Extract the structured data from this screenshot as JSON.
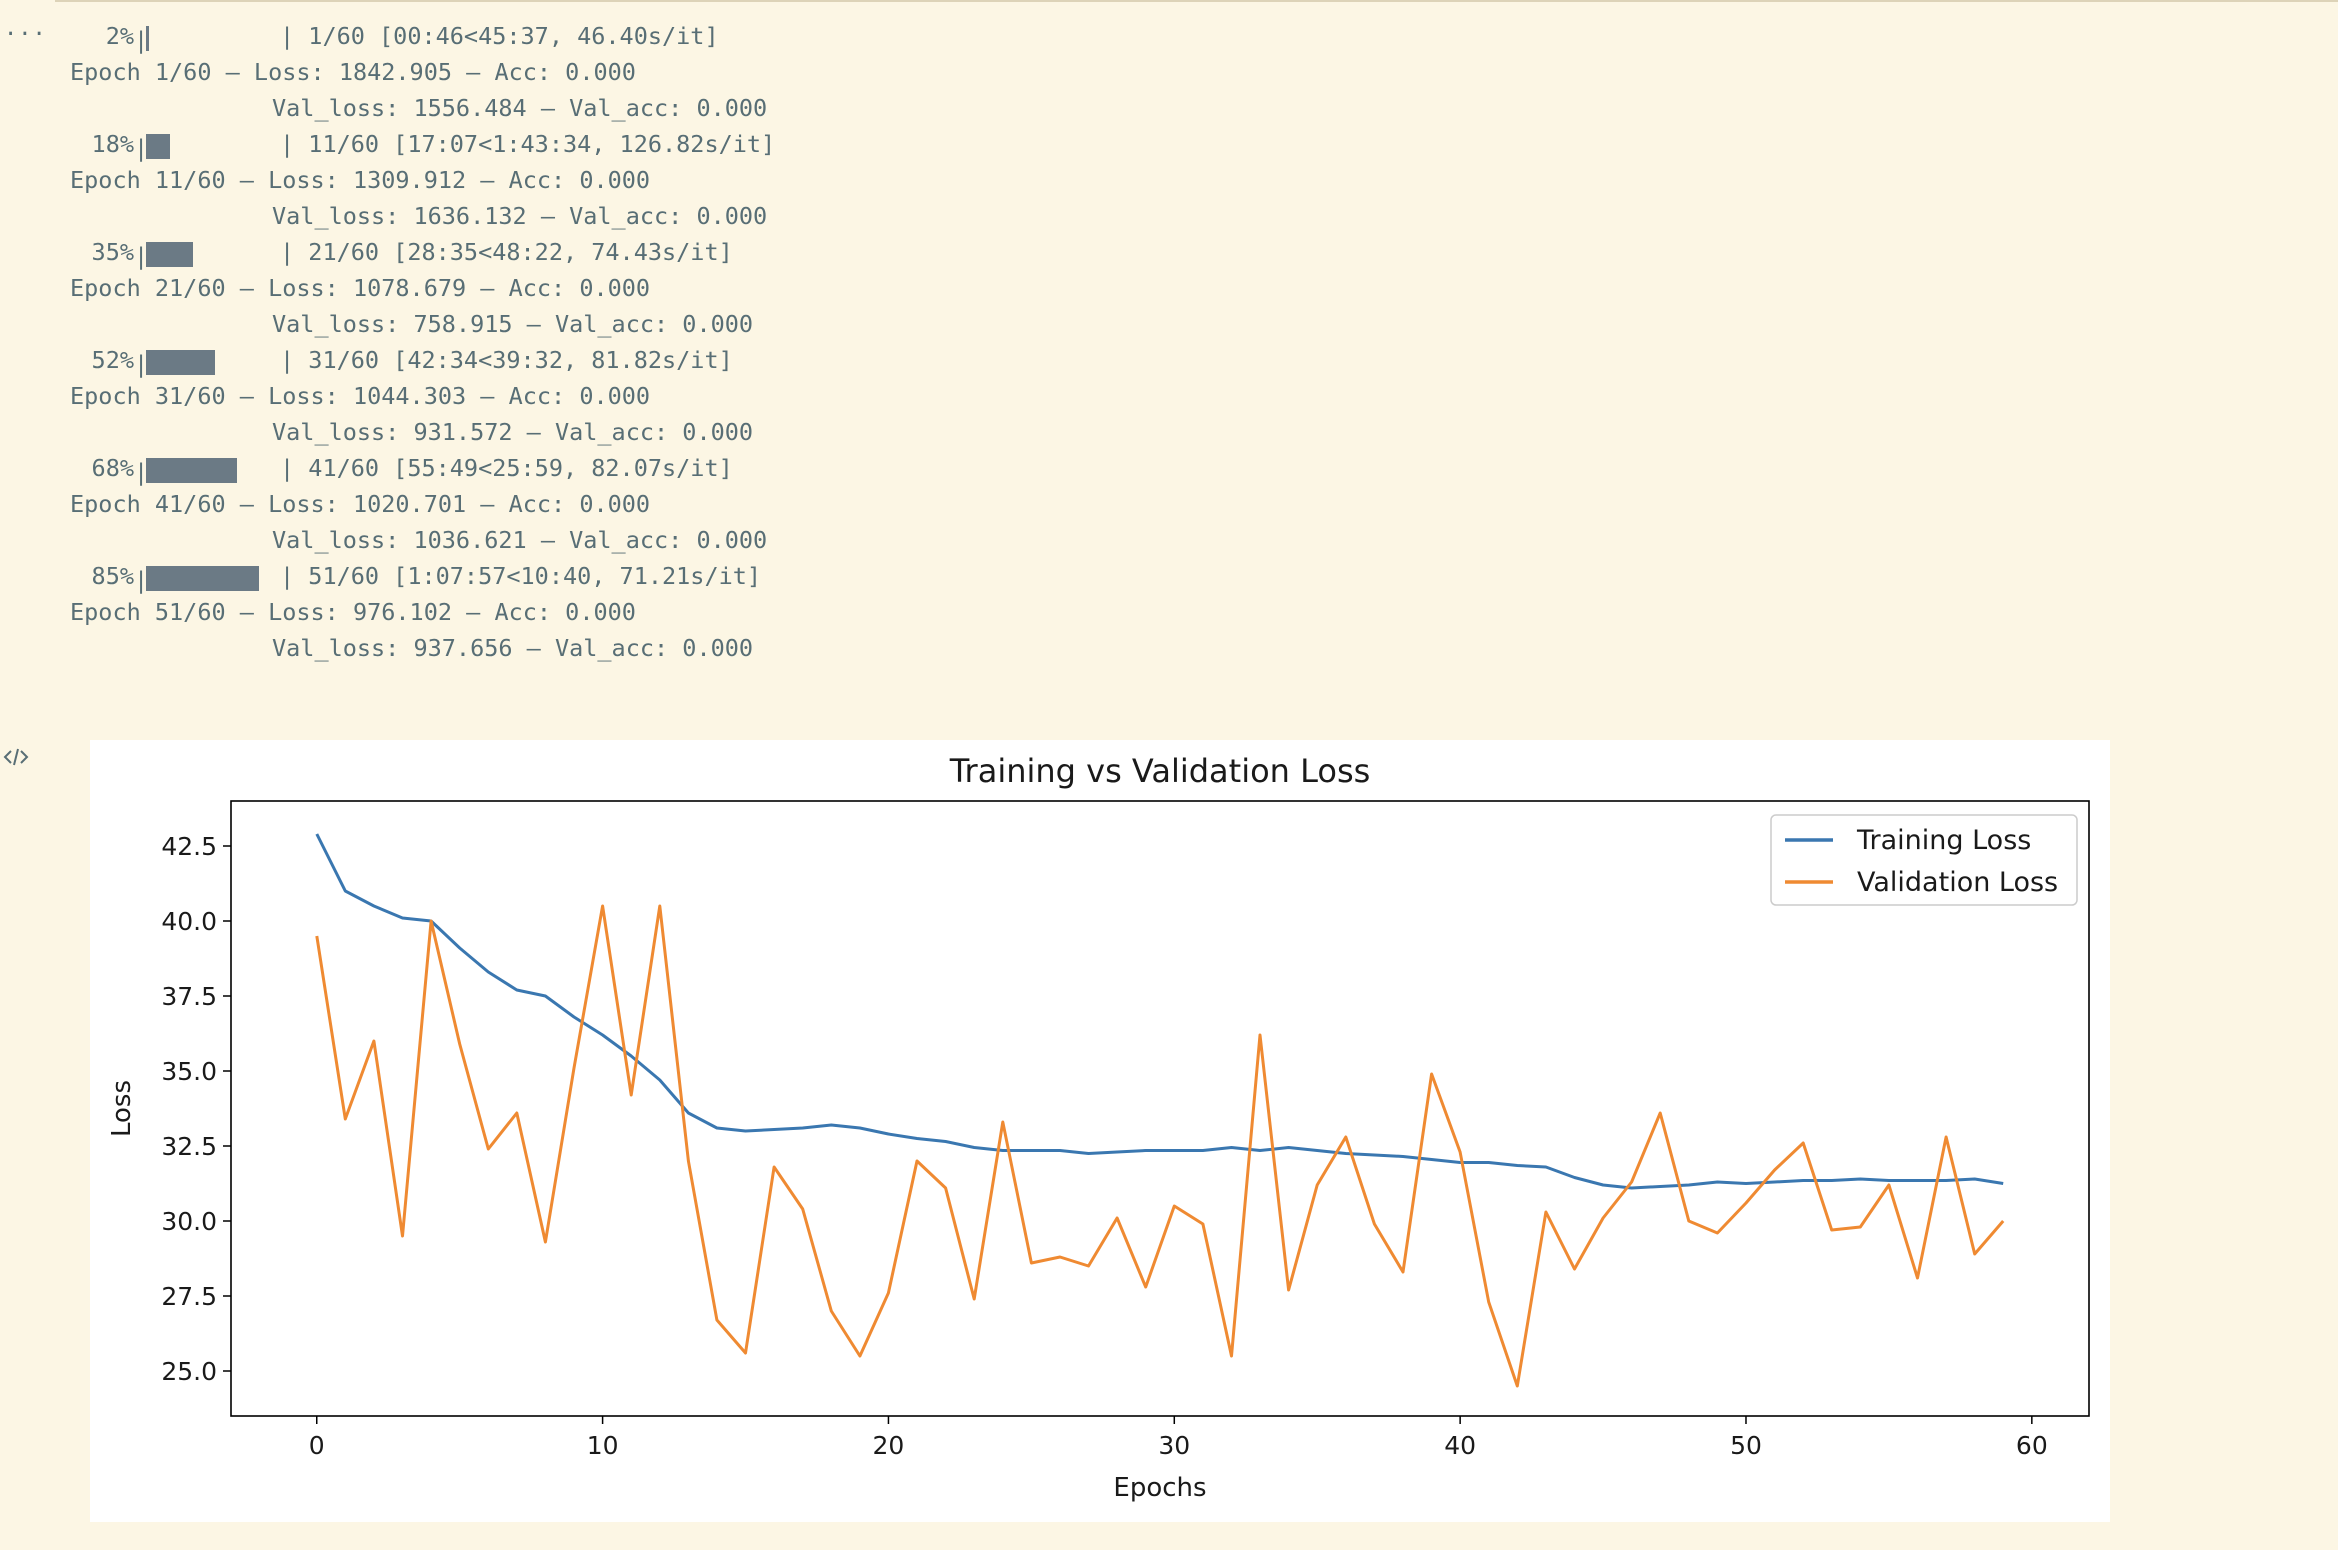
{
  "gutter": {
    "ellipsis": "...",
    "code_icon": "code-icon"
  },
  "log": {
    "blocks": [
      {
        "progress": {
          "percent_label": "2%",
          "fraction": 0.02,
          "info": "| 1/60 [00:46<45:37, 46.40s/it]"
        },
        "epoch_line": "Epoch 1/60 – Loss: 1842.905 – Acc: 0.000",
        "val_line": "Val_loss: 1556.484 – Val_acc: 0.000"
      },
      {
        "progress": {
          "percent_label": "18%",
          "fraction": 0.18,
          "info": "| 11/60 [17:07<1:43:34, 126.82s/it]"
        },
        "epoch_line": "Epoch 11/60 – Loss: 1309.912 – Acc: 0.000",
        "val_line": "Val_loss: 1636.132 – Val_acc: 0.000"
      },
      {
        "progress": {
          "percent_label": "35%",
          "fraction": 0.35,
          "info": "| 21/60 [28:35<48:22, 74.43s/it]"
        },
        "epoch_line": "Epoch 21/60 – Loss: 1078.679 – Acc: 0.000",
        "val_line": "Val_loss: 758.915 – Val_acc: 0.000"
      },
      {
        "progress": {
          "percent_label": "52%",
          "fraction": 0.52,
          "info": "| 31/60 [42:34<39:32, 81.82s/it]"
        },
        "epoch_line": "Epoch 31/60 – Loss: 1044.303 – Acc: 0.000",
        "val_line": "Val_loss: 931.572 – Val_acc: 0.000"
      },
      {
        "progress": {
          "percent_label": "68%",
          "fraction": 0.68,
          "info": "| 41/60 [55:49<25:59, 82.07s/it]"
        },
        "epoch_line": "Epoch 41/60 – Loss: 1020.701 – Acc: 0.000",
        "val_line": "Val_loss: 1036.621 – Val_acc: 0.000"
      },
      {
        "progress": {
          "percent_label": "85%",
          "fraction": 0.85,
          "info": "| 51/60 [1:07:57<10:40, 71.21s/it]"
        },
        "epoch_line": "Epoch 51/60 – Loss: 976.102 – Acc: 0.000",
        "val_line": "Val_loss: 937.656 – Val_acc: 0.000"
      }
    ]
  },
  "colors": {
    "background": "#fcf6e4",
    "text": "#586e75",
    "training": "#3a77b0",
    "validation": "#ef8a32"
  },
  "chart_data": {
    "type": "line",
    "title": "Training vs Validation Loss",
    "xlabel": "Epochs",
    "ylabel": "Loss",
    "xlim": [
      -3,
      62
    ],
    "ylim": [
      23.5,
      44
    ],
    "xticks": [
      0,
      10,
      20,
      30,
      40,
      50,
      60
    ],
    "yticks": [
      25.0,
      27.5,
      30.0,
      32.5,
      35.0,
      37.5,
      40.0,
      42.5
    ],
    "ytick_labels": [
      "25.0",
      "27.5",
      "30.0",
      "32.5",
      "35.0",
      "37.5",
      "40.0",
      "42.5"
    ],
    "grid": false,
    "legend_position": "top-right",
    "x": [
      0,
      1,
      2,
      3,
      4,
      5,
      6,
      7,
      8,
      9,
      10,
      11,
      12,
      13,
      14,
      15,
      16,
      17,
      18,
      19,
      20,
      21,
      22,
      23,
      24,
      25,
      26,
      27,
      28,
      29,
      30,
      31,
      32,
      33,
      34,
      35,
      36,
      37,
      38,
      39,
      40,
      41,
      42,
      43,
      44,
      45,
      46,
      47,
      48,
      49,
      50,
      51,
      52,
      53,
      54,
      55,
      56,
      57,
      58,
      59
    ],
    "series": [
      {
        "name": "Training Loss",
        "color": "#3a77b0",
        "values": [
          42.9,
          41.0,
          40.5,
          40.1,
          40.0,
          39.1,
          38.3,
          37.7,
          37.5,
          36.8,
          36.2,
          35.5,
          34.7,
          33.6,
          33.1,
          33.0,
          33.05,
          33.1,
          33.2,
          33.1,
          32.9,
          32.75,
          32.65,
          32.45,
          32.35,
          32.35,
          32.35,
          32.25,
          32.3,
          32.35,
          32.35,
          32.35,
          32.45,
          32.35,
          32.45,
          32.35,
          32.25,
          32.2,
          32.15,
          32.05,
          31.95,
          31.95,
          31.85,
          31.8,
          31.45,
          31.2,
          31.1,
          31.15,
          31.2,
          31.3,
          31.25,
          31.3,
          31.35,
          31.35,
          31.4,
          31.35,
          31.35,
          31.35,
          31.4,
          31.25
        ]
      },
      {
        "name": "Validation Loss",
        "color": "#ef8a32",
        "values": [
          39.5,
          33.4,
          36.0,
          29.5,
          40.0,
          35.9,
          32.4,
          33.6,
          29.3,
          35.1,
          40.5,
          34.2,
          40.5,
          32.0,
          26.7,
          25.6,
          31.8,
          30.4,
          27.0,
          25.5,
          27.6,
          32.0,
          31.1,
          27.4,
          33.3,
          28.6,
          28.8,
          28.5,
          30.1,
          27.8,
          30.5,
          29.9,
          25.5,
          36.2,
          27.7,
          31.2,
          32.8,
          29.9,
          28.3,
          34.9,
          32.3,
          27.3,
          24.5,
          30.3,
          28.4,
          30.1,
          31.3,
          33.6,
          30.0,
          29.6,
          30.6,
          31.7,
          32.6,
          29.7,
          29.8,
          31.2,
          28.1,
          32.8,
          28.9,
          30.0
        ]
      }
    ]
  }
}
